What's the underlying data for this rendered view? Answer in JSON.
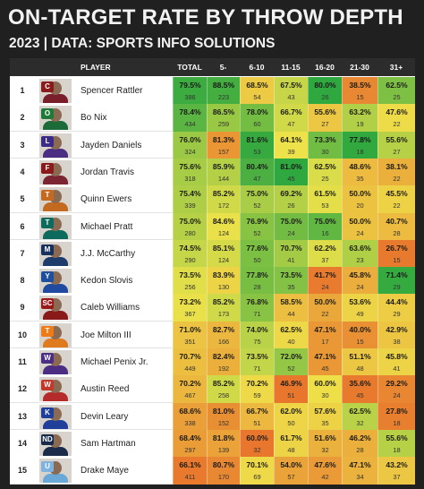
{
  "title": "ON-TARGET RATE BY THROW DEPTH",
  "subtitle": "2023 | DATA: SPORTS INFO SOLUTIONS",
  "colors": {
    "low": "#e8772d",
    "mid": "#eee24a",
    "high": "#2fa83f"
  },
  "chart_data": {
    "type": "table",
    "columns": [
      "PLAYER",
      "TOTAL",
      "5-",
      "6-10",
      "11-15",
      "16-20",
      "21-30",
      "31+"
    ],
    "rows": [
      {
        "rank": "1",
        "player": "Spencer Rattler",
        "team": "South Carolina",
        "values": [
          [
            "79.5%",
            "386"
          ],
          [
            "88.5%",
            "223"
          ],
          [
            "68.5%",
            "54"
          ],
          [
            "67.5%",
            "43"
          ],
          [
            "80.0%",
            "26"
          ],
          [
            "38.5%",
            "15"
          ],
          [
            "62.5%",
            "25"
          ]
        ]
      },
      {
        "rank": "2",
        "player": "Bo Nix",
        "team": "Oregon",
        "values": [
          [
            "78.4%",
            "434"
          ],
          [
            "86.5%",
            "259"
          ],
          [
            "78.0%",
            "60"
          ],
          [
            "66.7%",
            "47"
          ],
          [
            "55.6%",
            "27"
          ],
          [
            "63.2%",
            "19"
          ],
          [
            "47.6%",
            "22"
          ]
        ]
      },
      {
        "rank": "3",
        "player": "Jayden Daniels",
        "team": "LSU",
        "values": [
          [
            "76.0%",
            "324"
          ],
          [
            "81.3%",
            "157"
          ],
          [
            "81.6%",
            "53"
          ],
          [
            "64.1%",
            "39"
          ],
          [
            "73.3%",
            "30"
          ],
          [
            "77.8%",
            "18"
          ],
          [
            "55.6%",
            "27"
          ]
        ]
      },
      {
        "rank": "4",
        "player": "Jordan Travis",
        "team": "Florida State",
        "values": [
          [
            "75.6%",
            "318"
          ],
          [
            "85.9%",
            "144"
          ],
          [
            "80.4%",
            "47"
          ],
          [
            "81.0%",
            "45"
          ],
          [
            "62.5%",
            "25"
          ],
          [
            "48.6%",
            "35"
          ],
          [
            "38.1%",
            "22"
          ]
        ]
      },
      {
        "rank": "5",
        "player": "Quinn Ewers",
        "team": "Texas",
        "values": [
          [
            "75.4%",
            "339"
          ],
          [
            "85.2%",
            "172"
          ],
          [
            "75.0%",
            "52"
          ],
          [
            "69.2%",
            "26"
          ],
          [
            "61.5%",
            "53"
          ],
          [
            "50.0%",
            "20"
          ],
          [
            "45.5%",
            "22"
          ]
        ]
      },
      {
        "rank": "6",
        "player": "Michael Pratt",
        "team": "Tulane",
        "values": [
          [
            "75.0%",
            "280"
          ],
          [
            "84.6%",
            "124"
          ],
          [
            "76.9%",
            "52"
          ],
          [
            "75.0%",
            "24"
          ],
          [
            "75.0%",
            "16"
          ],
          [
            "50.0%",
            "24"
          ],
          [
            "40.7%",
            "28"
          ]
        ]
      },
      {
        "rank": "7",
        "player": "J.J. McCarthy",
        "team": "Michigan",
        "values": [
          [
            "74.5%",
            "290"
          ],
          [
            "85.1%",
            "124"
          ],
          [
            "77.6%",
            "50"
          ],
          [
            "70.7%",
            "41"
          ],
          [
            "62.2%",
            "37"
          ],
          [
            "63.6%",
            "23"
          ],
          [
            "26.7%",
            "15"
          ]
        ]
      },
      {
        "rank": "8",
        "player": "Kedon Slovis",
        "team": "BYU",
        "values": [
          [
            "73.5%",
            "256"
          ],
          [
            "83.9%",
            "130"
          ],
          [
            "77.8%",
            "28"
          ],
          [
            "73.5%",
            "35"
          ],
          [
            "41.7%",
            "24"
          ],
          [
            "45.8%",
            "24"
          ],
          [
            "71.4%",
            "29"
          ]
        ]
      },
      {
        "rank": "9",
        "player": "Caleb Williams",
        "team": "USC",
        "values": [
          [
            "73.2%",
            "367"
          ],
          [
            "85.2%",
            "173"
          ],
          [
            "76.8%",
            "71"
          ],
          [
            "58.5%",
            "44"
          ],
          [
            "50.0%",
            "22"
          ],
          [
            "53.6%",
            "49"
          ],
          [
            "44.4%",
            "29"
          ]
        ]
      },
      {
        "rank": "10",
        "player": "Joe Milton III",
        "team": "Tennessee",
        "values": [
          [
            "71.0%",
            "351"
          ],
          [
            "82.7%",
            "166"
          ],
          [
            "74.0%",
            "75"
          ],
          [
            "62.5%",
            "40"
          ],
          [
            "47.1%",
            "17"
          ],
          [
            "40.0%",
            "15"
          ],
          [
            "42.9%",
            "38"
          ]
        ]
      },
      {
        "rank": "11",
        "player": "Michael Penix Jr.",
        "team": "Washington",
        "values": [
          [
            "70.7%",
            "449"
          ],
          [
            "82.4%",
            "192"
          ],
          [
            "73.5%",
            "71"
          ],
          [
            "72.0%",
            "52"
          ],
          [
            "47.1%",
            "45"
          ],
          [
            "51.1%",
            "48"
          ],
          [
            "45.8%",
            "41"
          ]
        ]
      },
      {
        "rank": "12",
        "player": "Austin Reed",
        "team": "Western Kentucky",
        "values": [
          [
            "70.2%",
            "467"
          ],
          [
            "85.2%",
            "258"
          ],
          [
            "70.2%",
            "59"
          ],
          [
            "46.9%",
            "51"
          ],
          [
            "60.0%",
            "30"
          ],
          [
            "35.6%",
            "45"
          ],
          [
            "29.2%",
            "24"
          ]
        ]
      },
      {
        "rank": "13",
        "player": "Devin Leary",
        "team": "Kentucky",
        "values": [
          [
            "68.6%",
            "338"
          ],
          [
            "81.0%",
            "152"
          ],
          [
            "66.7%",
            "51"
          ],
          [
            "62.0%",
            "50"
          ],
          [
            "57.6%",
            "35"
          ],
          [
            "62.5%",
            "32"
          ],
          [
            "27.8%",
            "18"
          ]
        ]
      },
      {
        "rank": "14",
        "player": "Sam Hartman",
        "team": "Notre Dame",
        "values": [
          [
            "68.4%",
            "297"
          ],
          [
            "81.8%",
            "139"
          ],
          [
            "60.0%",
            "32"
          ],
          [
            "61.7%",
            "48"
          ],
          [
            "51.6%",
            "32"
          ],
          [
            "46.2%",
            "28"
          ],
          [
            "55.6%",
            "18"
          ]
        ]
      },
      {
        "rank": "15",
        "player": "Drake Maye",
        "team": "North Carolina",
        "values": [
          [
            "66.1%",
            "411"
          ],
          [
            "80.7%",
            "170"
          ],
          [
            "70.1%",
            "69"
          ],
          [
            "54.0%",
            "57"
          ],
          [
            "47.6%",
            "42"
          ],
          [
            "47.1%",
            "34"
          ],
          [
            "43.2%",
            "37"
          ]
        ]
      }
    ]
  }
}
